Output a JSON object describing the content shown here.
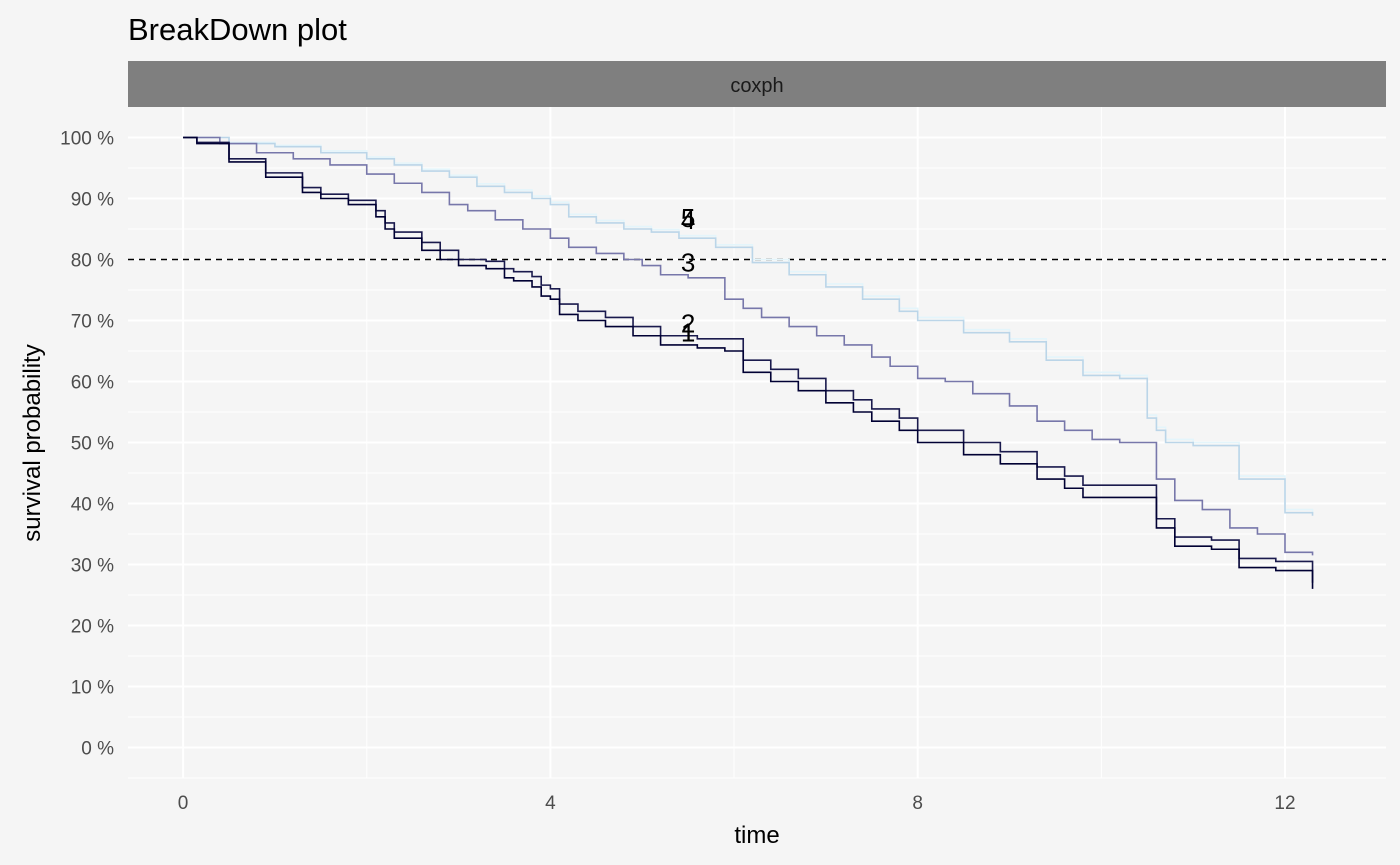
{
  "chart_data": {
    "type": "line",
    "title": "BreakDown plot",
    "facet": "coxph",
    "xlabel": "time",
    "ylabel": "survival probability",
    "xlim": [
      -0.6,
      13.1
    ],
    "ylim": [
      -0.05,
      1.05
    ],
    "x_ticks": [
      0,
      4,
      8,
      12
    ],
    "x_tick_labels": [
      "0",
      "4",
      "8",
      "12"
    ],
    "y_ticks": [
      0,
      0.1,
      0.2,
      0.3,
      0.4,
      0.5,
      0.6,
      0.7,
      0.8,
      0.9,
      1.0
    ],
    "y_tick_labels": [
      "0 %",
      "10 %",
      "20 %",
      "30 %",
      "40 %",
      "50 %",
      "60 %",
      "70 %",
      "80 %",
      "90 %",
      "100 %"
    ],
    "grid": true,
    "reference_line": {
      "y": 0.8,
      "style": "dashed",
      "color": "#000000"
    },
    "series": [
      {
        "label": "1",
        "color": "#000033",
        "label_at": [
          5.5,
          0.68
        ],
        "x": [
          0,
          0.15,
          0.5,
          0.9,
          1.3,
          1.5,
          1.8,
          2.1,
          2.2,
          2.3,
          2.6,
          2.8,
          3.0,
          3.3,
          3.5,
          3.6,
          3.8,
          3.9,
          4.0,
          4.1,
          4.3,
          4.6,
          4.9,
          5.2,
          5.6,
          5.9,
          6.1,
          6.4,
          6.7,
          7.0,
          7.3,
          7.5,
          7.8,
          8.0,
          8.5,
          8.9,
          9.3,
          9.6,
          9.8,
          10.2,
          10.4,
          10.6,
          10.8,
          11.2,
          11.5,
          11.9,
          12.3
        ],
        "y": [
          1.0,
          0.99,
          0.96,
          0.935,
          0.91,
          0.9,
          0.89,
          0.87,
          0.85,
          0.835,
          0.815,
          0.8,
          0.79,
          0.785,
          0.77,
          0.765,
          0.755,
          0.74,
          0.735,
          0.71,
          0.7,
          0.69,
          0.675,
          0.66,
          0.655,
          0.65,
          0.615,
          0.6,
          0.585,
          0.565,
          0.55,
          0.535,
          0.52,
          0.5,
          0.48,
          0.465,
          0.44,
          0.425,
          0.41,
          0.41,
          0.41,
          0.36,
          0.33,
          0.325,
          0.295,
          0.29,
          0.26
        ]
      },
      {
        "label": "2",
        "color": "#1a1a4d",
        "label_at": [
          5.5,
          0.695
        ],
        "x": [
          0,
          0.15,
          0.5,
          0.9,
          1.3,
          1.5,
          1.8,
          2.1,
          2.2,
          2.3,
          2.6,
          2.8,
          3.0,
          3.3,
          3.5,
          3.6,
          3.8,
          3.9,
          4.0,
          4.1,
          4.3,
          4.6,
          4.9,
          5.2,
          5.6,
          5.9,
          6.1,
          6.4,
          6.7,
          7.0,
          7.3,
          7.5,
          7.8,
          8.0,
          8.5,
          8.9,
          9.3,
          9.6,
          9.8,
          10.2,
          10.4,
          10.6,
          10.8,
          11.2,
          11.5,
          11.9,
          12.3
        ],
        "y": [
          1.0,
          0.992,
          0.965,
          0.942,
          0.918,
          0.907,
          0.897,
          0.88,
          0.86,
          0.845,
          0.828,
          0.815,
          0.8,
          0.797,
          0.785,
          0.78,
          0.772,
          0.758,
          0.752,
          0.727,
          0.715,
          0.705,
          0.69,
          0.675,
          0.67,
          0.67,
          0.635,
          0.62,
          0.605,
          0.585,
          0.57,
          0.555,
          0.54,
          0.52,
          0.5,
          0.485,
          0.46,
          0.445,
          0.43,
          0.43,
          0.43,
          0.375,
          0.345,
          0.34,
          0.31,
          0.305,
          0.27
        ]
      },
      {
        "label": "3",
        "color": "#7777aa",
        "label_at": [
          5.5,
          0.795
        ],
        "x": [
          0,
          0.4,
          0.8,
          1.2,
          1.6,
          2.0,
          2.3,
          2.6,
          2.9,
          3.1,
          3.4,
          3.7,
          4.0,
          4.2,
          4.5,
          4.8,
          5.0,
          5.2,
          5.5,
          5.9,
          6.1,
          6.3,
          6.6,
          6.9,
          7.2,
          7.5,
          7.7,
          8.0,
          8.3,
          8.6,
          9.0,
          9.3,
          9.6,
          9.9,
          10.2,
          10.4,
          10.6,
          10.8,
          11.1,
          11.4,
          11.7,
          12.0,
          12.3
        ],
        "y": [
          1.0,
          0.99,
          0.975,
          0.965,
          0.955,
          0.94,
          0.925,
          0.91,
          0.89,
          0.88,
          0.865,
          0.85,
          0.835,
          0.82,
          0.81,
          0.8,
          0.79,
          0.775,
          0.77,
          0.735,
          0.72,
          0.705,
          0.69,
          0.675,
          0.66,
          0.64,
          0.625,
          0.605,
          0.6,
          0.58,
          0.56,
          0.535,
          0.52,
          0.505,
          0.5,
          0.5,
          0.44,
          0.405,
          0.39,
          0.36,
          0.35,
          0.32,
          0.315
        ]
      },
      {
        "label": "4",
        "color": "#bbd5e8",
        "label_at": [
          5.5,
          0.865
        ],
        "x": [
          0,
          0.5,
          1.0,
          1.5,
          2.0,
          2.3,
          2.6,
          2.9,
          3.2,
          3.5,
          3.8,
          4.0,
          4.2,
          4.5,
          4.8,
          5.1,
          5.4,
          5.8,
          6.2,
          6.6,
          7.0,
          7.4,
          7.8,
          8.0,
          8.5,
          9.0,
          9.4,
          9.8,
          10.2,
          10.5,
          10.6,
          10.7,
          11.0,
          11.5,
          12.0,
          12.3
        ],
        "y": [
          1.0,
          0.99,
          0.985,
          0.975,
          0.965,
          0.955,
          0.945,
          0.935,
          0.92,
          0.91,
          0.9,
          0.89,
          0.87,
          0.86,
          0.85,
          0.845,
          0.835,
          0.82,
          0.795,
          0.775,
          0.755,
          0.735,
          0.715,
          0.7,
          0.68,
          0.665,
          0.635,
          0.61,
          0.605,
          0.54,
          0.52,
          0.5,
          0.495,
          0.44,
          0.385,
          0.38
        ]
      },
      {
        "label": "5",
        "color": "#e4f5fb",
        "label_at": [
          5.5,
          0.868
        ],
        "x": [
          0,
          0.5,
          1.0,
          1.5,
          2.0,
          2.3,
          2.6,
          2.9,
          3.2,
          3.5,
          3.8,
          4.0,
          4.2,
          4.5,
          4.8,
          5.1,
          5.4,
          5.8,
          6.2,
          6.6,
          7.0,
          7.4,
          7.8,
          8.0,
          8.5,
          9.0,
          9.4,
          9.8,
          10.2,
          10.5,
          10.6,
          10.7,
          11.0,
          11.5,
          12.0,
          12.3
        ],
        "y": [
          1.0,
          0.992,
          0.987,
          0.978,
          0.968,
          0.958,
          0.948,
          0.938,
          0.924,
          0.914,
          0.904,
          0.894,
          0.874,
          0.864,
          0.854,
          0.849,
          0.839,
          0.824,
          0.8,
          0.78,
          0.76,
          0.74,
          0.72,
          0.705,
          0.685,
          0.67,
          0.64,
          0.615,
          0.61,
          0.545,
          0.525,
          0.505,
          0.5,
          0.445,
          0.39,
          0.385
        ]
      }
    ]
  }
}
